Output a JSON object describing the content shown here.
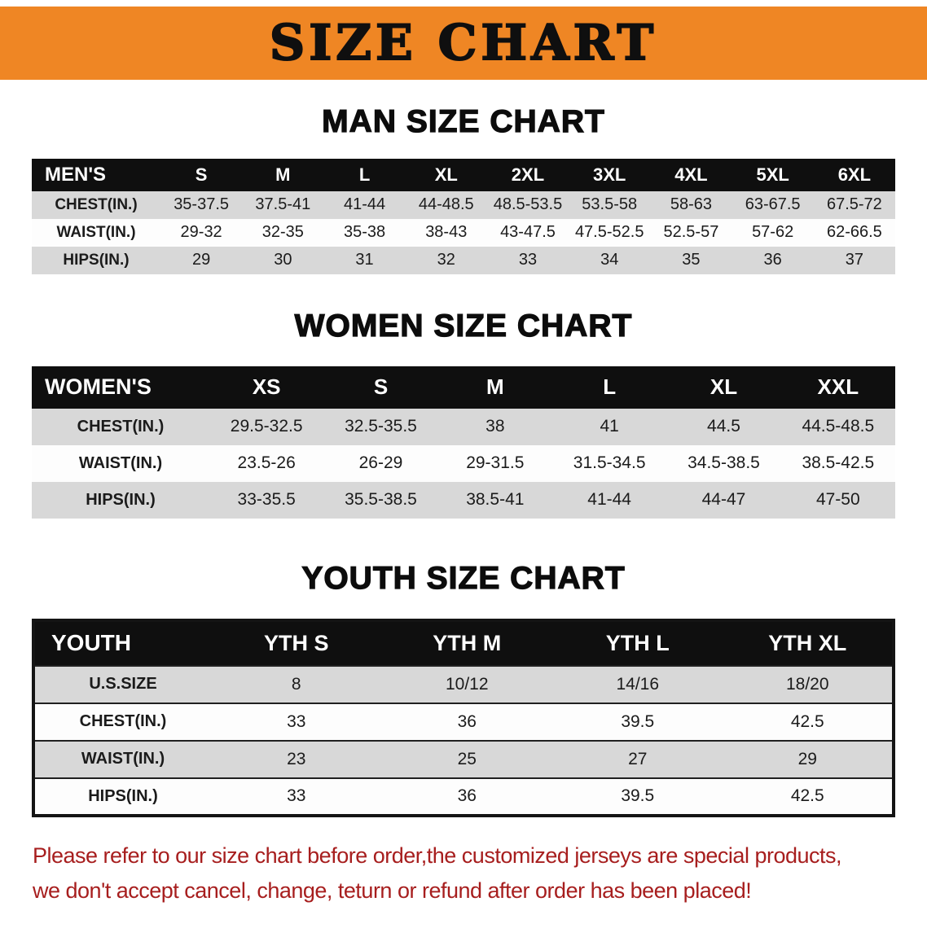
{
  "banner": {
    "title": "SIZE CHART"
  },
  "sections": [
    {
      "id": "men",
      "heading": "MAN SIZE CHART",
      "table": {
        "header": [
          "MEN'S",
          "S",
          "M",
          "L",
          "XL",
          "2XL",
          "3XL",
          "4XL",
          "5XL",
          "6XL"
        ],
        "rows": [
          [
            "CHEST(IN.)",
            "35-37.5",
            "37.5-41",
            "41-44",
            "44-48.5",
            "48.5-53.5",
            "53.5-58",
            "58-63",
            "63-67.5",
            "67.5-72"
          ],
          [
            "WAIST(IN.)",
            "29-32",
            "32-35",
            "35-38",
            "38-43",
            "43-47.5",
            "47.5-52.5",
            "52.5-57",
            "57-62",
            "62-66.5"
          ],
          [
            "HIPS(IN.)",
            "29",
            "30",
            "31",
            "32",
            "33",
            "34",
            "35",
            "36",
            "37"
          ]
        ]
      }
    },
    {
      "id": "women",
      "heading": "WOMEN SIZE CHART",
      "table": {
        "header": [
          "WOMEN'S",
          "XS",
          "S",
          "M",
          "L",
          "XL",
          "XXL"
        ],
        "rows": [
          [
            "CHEST(IN.)",
            "29.5-32.5",
            "32.5-35.5",
            "38",
            "41",
            "44.5",
            "44.5-48.5"
          ],
          [
            "WAIST(IN.)",
            "23.5-26",
            "26-29",
            "29-31.5",
            "31.5-34.5",
            "34.5-38.5",
            "38.5-42.5"
          ],
          [
            "HIPS(IN.)",
            "33-35.5",
            "35.5-38.5",
            "38.5-41",
            "41-44",
            "44-47",
            "47-50"
          ]
        ]
      }
    },
    {
      "id": "youth",
      "heading": "YOUTH SIZE CHART",
      "table": {
        "header": [
          "YOUTH",
          "YTH S",
          "YTH M",
          "YTH L",
          "YTH XL"
        ],
        "rows": [
          [
            "U.S.SIZE",
            "8",
            "10/12",
            "14/16",
            "18/20"
          ],
          [
            "CHEST(IN.)",
            "33",
            "36",
            "39.5",
            "42.5"
          ],
          [
            "WAIST(IN.)",
            "23",
            "25",
            "27",
            "29"
          ],
          [
            "HIPS(IN.)",
            "33",
            "36",
            "39.5",
            "42.5"
          ]
        ]
      }
    }
  ],
  "disclaimer": {
    "line1": "Please refer to our size chart before order,the customized jerseys are special products,",
    "line2": "we don't accept cancel, change, teturn or refund after order has been placed!"
  },
  "colors": {
    "banner_orange": "#ef8624",
    "header_black": "#0f0f0f",
    "row_gray": "#d8d8d8",
    "disclaimer_red": "#a71e1e"
  }
}
